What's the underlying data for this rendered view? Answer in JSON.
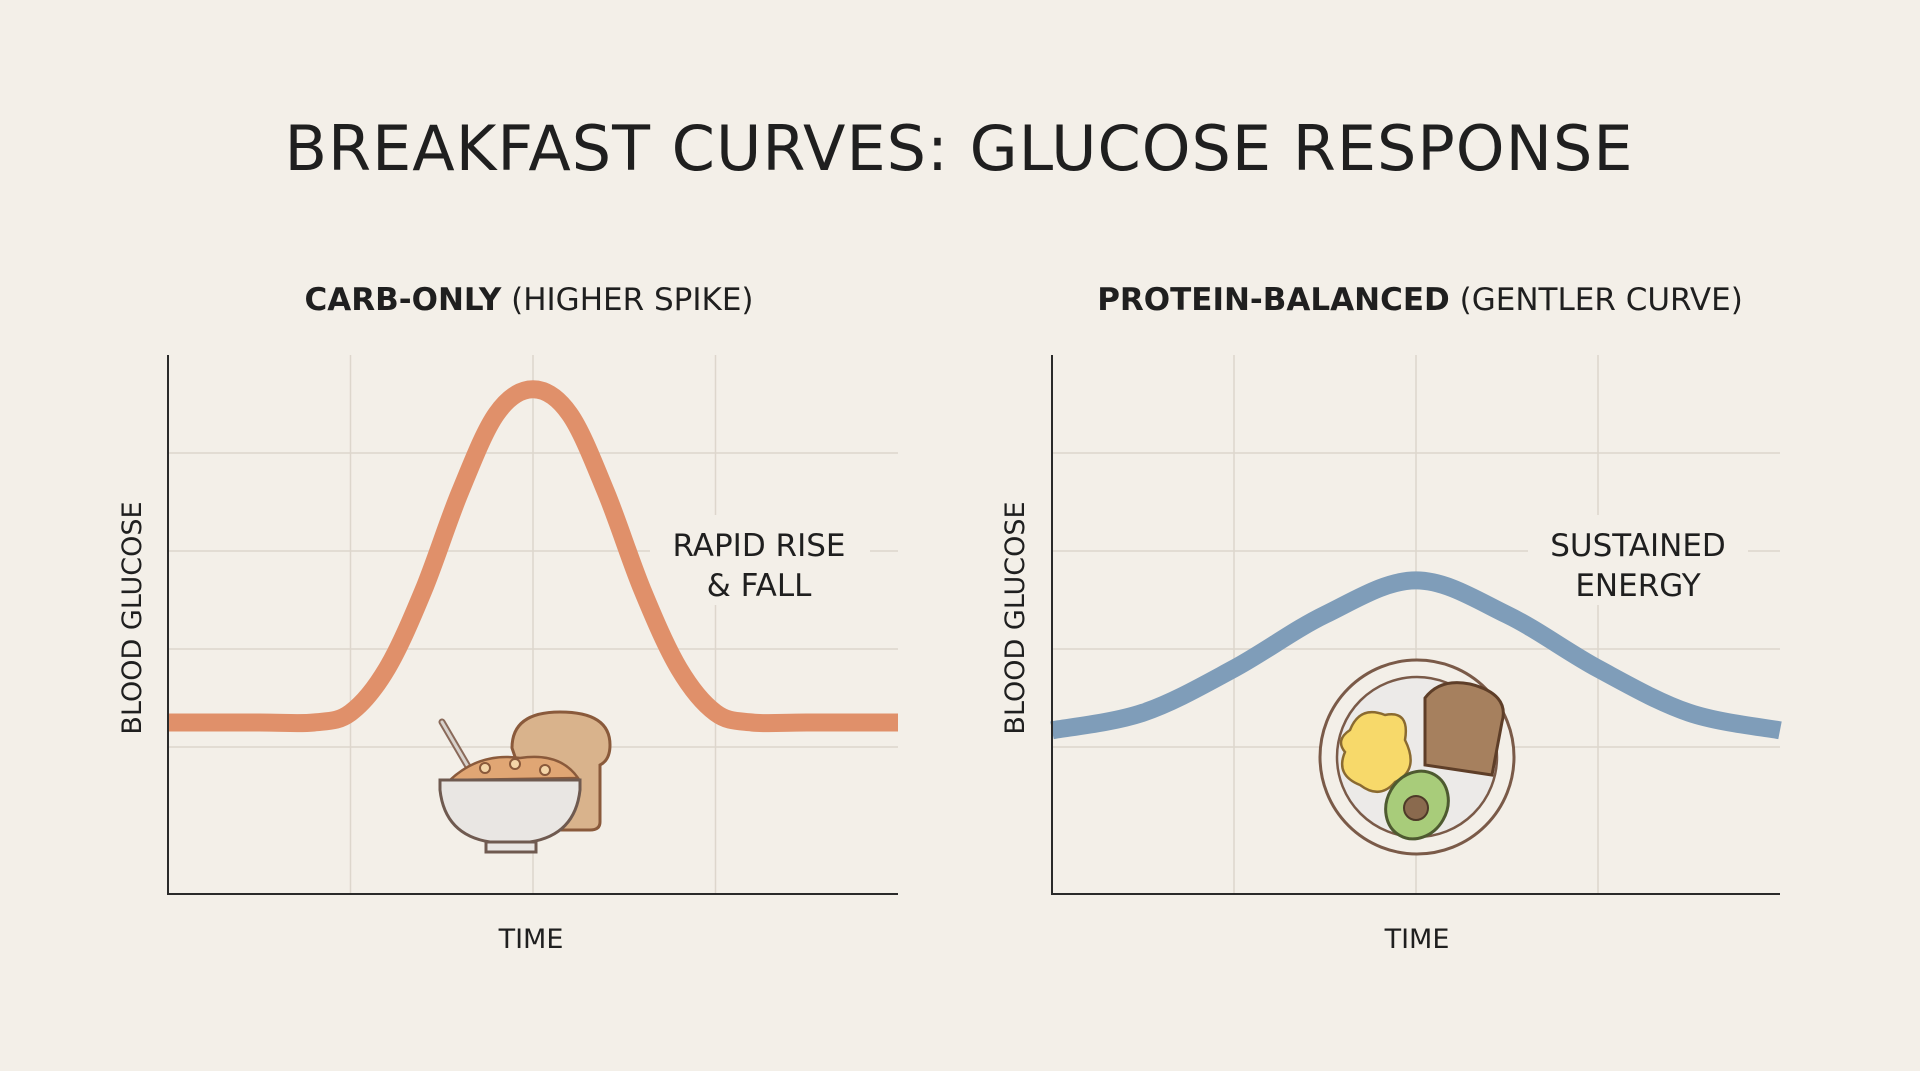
{
  "title": "BREAKFAST CURVES: GLUCOSE RESPONSE",
  "chart_data": [
    {
      "type": "line",
      "title_bold": "CARB-ONLY",
      "title_rest": "(HIGHER SPIKE)",
      "xlabel": "TIME",
      "ylabel": "BLOOD GLUCOSE",
      "xlim": [
        0,
        4
      ],
      "ylim": [
        0,
        5.5
      ],
      "grid": true,
      "annotation": [
        "RAPID RISE",
        "& FALL"
      ],
      "color": "#e0906a",
      "icon": "cereal-bowl-and-toast",
      "x": [
        0,
        0.5,
        0.8,
        1,
        1.2,
        1.4,
        1.6,
        1.8,
        2,
        2.2,
        2.4,
        2.6,
        2.8,
        3,
        3.2,
        3.5,
        4
      ],
      "y": [
        1.75,
        1.75,
        1.75,
        1.85,
        2.3,
        3.1,
        4.1,
        4.9,
        5.15,
        4.9,
        4.1,
        3.1,
        2.3,
        1.85,
        1.75,
        1.75,
        1.75
      ]
    },
    {
      "type": "line",
      "title_bold": "PROTEIN-BALANCED",
      "title_rest": "(GENTLER CURVE)",
      "xlabel": "TIME",
      "ylabel": "BLOOD GLUCOSE",
      "xlim": [
        0,
        4
      ],
      "ylim": [
        0,
        5.5
      ],
      "grid": true,
      "annotation": [
        "SUSTAINED",
        "ENERGY"
      ],
      "color": "#7f9db9",
      "icon": "plate-eggs-toast-avocado",
      "x": [
        0,
        0.5,
        1,
        1.5,
        2,
        2.5,
        3,
        3.5,
        4
      ],
      "y": [
        1.67,
        1.85,
        2.3,
        2.85,
        3.2,
        2.85,
        2.3,
        1.85,
        1.67
      ]
    }
  ]
}
